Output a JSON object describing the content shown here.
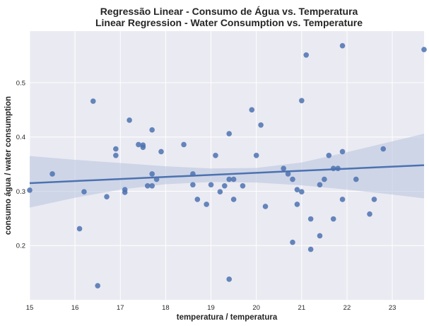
{
  "chart_data": {
    "type": "scatter",
    "title_line1": "Regressão Linear - Consumo de Água vs. Temperatura",
    "title_line2": "Linear Regression - Water Consumption vs. Temperature",
    "xlabel": "temperatura / temperatura",
    "ylabel": "consumo água / water consumption",
    "xlim": [
      15,
      23.7
    ],
    "ylim": [
      0.1,
      0.595
    ],
    "xticks": [
      15,
      16,
      17,
      18,
      19,
      20,
      21,
      22,
      23
    ],
    "yticks": [
      0.2,
      0.3,
      0.4,
      0.5
    ],
    "ytick_labels": [
      "0.2",
      "0.3",
      "0.4",
      "0.5"
    ],
    "grid": true,
    "points": [
      [
        15.0,
        0.302
      ],
      [
        15.5,
        0.332
      ],
      [
        16.1,
        0.231
      ],
      [
        16.2,
        0.299
      ],
      [
        16.4,
        0.466
      ],
      [
        16.5,
        0.126
      ],
      [
        16.7,
        0.29
      ],
      [
        16.9,
        0.378
      ],
      [
        16.9,
        0.366
      ],
      [
        17.1,
        0.298
      ],
      [
        17.1,
        0.303
      ],
      [
        17.2,
        0.431
      ],
      [
        17.4,
        0.386
      ],
      [
        17.5,
        0.385
      ],
      [
        17.5,
        0.381
      ],
      [
        17.6,
        0.31
      ],
      [
        17.7,
        0.413
      ],
      [
        17.7,
        0.332
      ],
      [
        17.7,
        0.31
      ],
      [
        17.8,
        0.322
      ],
      [
        17.9,
        0.373
      ],
      [
        18.4,
        0.386
      ],
      [
        18.6,
        0.332
      ],
      [
        18.6,
        0.312
      ],
      [
        18.7,
        0.285
      ],
      [
        18.9,
        0.276
      ],
      [
        19.0,
        0.312
      ],
      [
        19.1,
        0.366
      ],
      [
        19.2,
        0.299
      ],
      [
        19.3,
        0.31
      ],
      [
        19.4,
        0.406
      ],
      [
        19.4,
        0.322
      ],
      [
        19.4,
        0.138
      ],
      [
        19.5,
        0.322
      ],
      [
        19.5,
        0.285
      ],
      [
        19.7,
        0.31
      ],
      [
        19.9,
        0.45
      ],
      [
        20.0,
        0.366
      ],
      [
        20.1,
        0.422
      ],
      [
        20.2,
        0.272
      ],
      [
        20.6,
        0.342
      ],
      [
        20.7,
        0.332
      ],
      [
        20.8,
        0.322
      ],
      [
        20.8,
        0.206
      ],
      [
        20.9,
        0.303
      ],
      [
        20.9,
        0.276
      ],
      [
        21.0,
        0.467
      ],
      [
        21.0,
        0.299
      ],
      [
        21.1,
        0.551
      ],
      [
        21.2,
        0.249
      ],
      [
        21.2,
        0.193
      ],
      [
        21.4,
        0.312
      ],
      [
        21.4,
        0.218
      ],
      [
        21.5,
        0.322
      ],
      [
        21.6,
        0.366
      ],
      [
        21.7,
        0.342
      ],
      [
        21.7,
        0.249
      ],
      [
        21.8,
        0.342
      ],
      [
        21.9,
        0.568
      ],
      [
        21.9,
        0.373
      ],
      [
        21.9,
        0.285
      ],
      [
        22.2,
        0.322
      ],
      [
        22.5,
        0.258
      ],
      [
        22.6,
        0.285
      ],
      [
        22.8,
        0.378
      ],
      [
        23.7,
        0.561
      ]
    ],
    "regression": {
      "x": [
        15.0,
        23.7
      ],
      "y": [
        0.315,
        0.348
      ]
    },
    "confidence_band": {
      "x": [
        15.0,
        16.0,
        17.0,
        18.0,
        19.0,
        20.0,
        21.0,
        22.0,
        23.0,
        23.7
      ],
      "lower": [
        0.27,
        0.288,
        0.303,
        0.313,
        0.317,
        0.316,
        0.311,
        0.303,
        0.294,
        0.287
      ],
      "upper": [
        0.365,
        0.358,
        0.352,
        0.346,
        0.342,
        0.343,
        0.353,
        0.372,
        0.392,
        0.406
      ]
    },
    "colors": {
      "background": "#eaeaf2",
      "grid": "#ffffff",
      "points": "#4c72b0",
      "line": "#4c72b0",
      "band": "#b7c3df"
    }
  }
}
